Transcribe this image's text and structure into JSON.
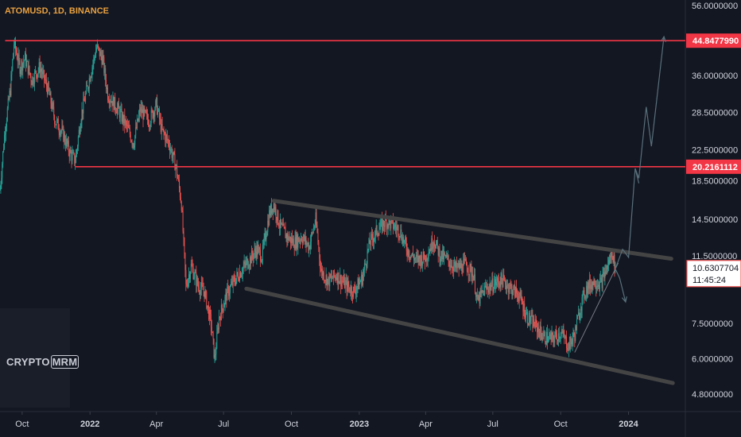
{
  "chart_data": {
    "type": "candlestick",
    "title": "ATOMUSD, 1D, BINANCE",
    "y_scale": "log",
    "ylim": [
      4.3,
      58
    ],
    "x_range": [
      "2021-09-01",
      "2024-03-18"
    ],
    "y_ticks": [
      "56.0000000",
      "36.0000000",
      "28.5000000",
      "22.5000000",
      "18.5000000",
      "14.5000000",
      "11.5000000",
      "7.5000000",
      "6.0000000",
      "4.8000000"
    ],
    "x_ticks": [
      {
        "label": "Oct",
        "date": "2021-10-01",
        "bold": false
      },
      {
        "label": "2022",
        "date": "2022-01-01",
        "bold": true
      },
      {
        "label": "Apr",
        "date": "2022-04-01",
        "bold": false
      },
      {
        "label": "Jul",
        "date": "2022-07-01",
        "bold": false
      },
      {
        "label": "Oct",
        "date": "2022-10-01",
        "bold": false
      },
      {
        "label": "2023",
        "date": "2023-01-01",
        "bold": true
      },
      {
        "label": "Apr",
        "date": "2023-04-01",
        "bold": false
      },
      {
        "label": "Jul",
        "date": "2023-07-01",
        "bold": false
      },
      {
        "label": "Oct",
        "date": "2023-10-01",
        "bold": false
      },
      {
        "label": "2024",
        "date": "2024-01-01",
        "bold": true
      }
    ],
    "price_path": [
      [
        "2021-09-01",
        17.5
      ],
      [
        "2021-09-08",
        26
      ],
      [
        "2021-09-15",
        33
      ],
      [
        "2021-09-20",
        44
      ],
      [
        "2021-09-28",
        38
      ],
      [
        "2021-10-05",
        40
      ],
      [
        "2021-10-14",
        35
      ],
      [
        "2021-10-25",
        38
      ],
      [
        "2021-11-05",
        33
      ],
      [
        "2021-11-15",
        27
      ],
      [
        "2021-11-25",
        25
      ],
      [
        "2021-12-05",
        22
      ],
      [
        "2021-12-12",
        21
      ],
      [
        "2021-12-20",
        28
      ],
      [
        "2022-01-01",
        36
      ],
      [
        "2022-01-10",
        43
      ],
      [
        "2022-01-18",
        40
      ],
      [
        "2022-01-25",
        32
      ],
      [
        "2022-02-08",
        29
      ],
      [
        "2022-02-20",
        26
      ],
      [
        "2022-03-01",
        23.5
      ],
      [
        "2022-03-10",
        29
      ],
      [
        "2022-03-22",
        27
      ],
      [
        "2022-04-01",
        30
      ],
      [
        "2022-04-08",
        25.5
      ],
      [
        "2022-04-18",
        23.5
      ],
      [
        "2022-04-28",
        20
      ],
      [
        "2022-05-05",
        16
      ],
      [
        "2022-05-11",
        9.5
      ],
      [
        "2022-05-18",
        10.8
      ],
      [
        "2022-05-28",
        9.5
      ],
      [
        "2022-06-05",
        9.2
      ],
      [
        "2022-06-14",
        7.5
      ],
      [
        "2022-06-19",
        6.0
      ],
      [
        "2022-06-25",
        7.8
      ],
      [
        "2022-07-05",
        9.0
      ],
      [
        "2022-07-15",
        9.8
      ],
      [
        "2022-07-25",
        10.5
      ],
      [
        "2022-08-05",
        11.2
      ],
      [
        "2022-08-15",
        12.0
      ],
      [
        "2022-08-22",
        11.5
      ],
      [
        "2022-09-01",
        15.0
      ],
      [
        "2022-09-07",
        16.0
      ],
      [
        "2022-09-15",
        14.0
      ],
      [
        "2022-09-25",
        13.0
      ],
      [
        "2022-10-05",
        12.5
      ],
      [
        "2022-10-15",
        13.0
      ],
      [
        "2022-10-25",
        12.2
      ],
      [
        "2022-11-03",
        14.5
      ],
      [
        "2022-11-10",
        10.5
      ],
      [
        "2022-11-20",
        9.8
      ],
      [
        "2022-12-01",
        10.2
      ],
      [
        "2022-12-15",
        9.5
      ],
      [
        "2022-12-25",
        9.2
      ],
      [
        "2023-01-05",
        10.0
      ],
      [
        "2023-01-15",
        12.5
      ],
      [
        "2023-01-25",
        13.5
      ],
      [
        "2023-02-05",
        14.3
      ],
      [
        "2023-02-15",
        14.0
      ],
      [
        "2023-02-25",
        13.5
      ],
      [
        "2023-03-05",
        12.2
      ],
      [
        "2023-03-12",
        11.6
      ],
      [
        "2023-03-20",
        11.2
      ],
      [
        "2023-04-01",
        11.4
      ],
      [
        "2023-04-12",
        12.8
      ],
      [
        "2023-04-20",
        11.6
      ],
      [
        "2023-05-01",
        11.2
      ],
      [
        "2023-05-12",
        10.6
      ],
      [
        "2023-05-25",
        10.9
      ],
      [
        "2023-06-05",
        10.2
      ],
      [
        "2023-06-10",
        8.6
      ],
      [
        "2023-06-20",
        9.3
      ],
      [
        "2023-07-01",
        9.6
      ],
      [
        "2023-07-13",
        9.9
      ],
      [
        "2023-07-25",
        9.4
      ],
      [
        "2023-08-05",
        9.0
      ],
      [
        "2023-08-17",
        7.8
      ],
      [
        "2023-08-28",
        7.4
      ],
      [
        "2023-09-08",
        6.9
      ],
      [
        "2023-09-20",
        6.8
      ],
      [
        "2023-10-01",
        7.1
      ],
      [
        "2023-10-12",
        6.5
      ],
      [
        "2023-10-20",
        7.0
      ],
      [
        "2023-10-28",
        8.4
      ],
      [
        "2023-11-05",
        9.4
      ],
      [
        "2023-11-15",
        9.8
      ],
      [
        "2023-11-25",
        9.7
      ],
      [
        "2023-12-05",
        11.0
      ],
      [
        "2023-12-10",
        11.8
      ],
      [
        "2023-12-14",
        10.6
      ]
    ],
    "resistance_levels": [
      {
        "price": 44.847799,
        "label": "44.8477990",
        "from": "2021-09-08"
      },
      {
        "price": 20.2161112,
        "label": "20.2161112",
        "from": "2021-12-12"
      }
    ],
    "channel": {
      "upper": [
        [
          "2022-09-07",
          16.3
        ],
        [
          "2024-02-28",
          11.3
        ]
      ],
      "lower": [
        [
          "2022-08-01",
          9.35
        ],
        [
          "2024-03-01",
          5.15
        ]
      ]
    },
    "support_trendline": [
      [
        "2023-10-20",
        6.25
      ],
      [
        "2023-12-18",
        11.0
      ]
    ],
    "projection_up": [
      [
        "2023-12-14",
        10.6
      ],
      [
        "2023-12-24",
        12.0
      ],
      [
        "2024-01-01",
        11.4
      ],
      [
        "2024-01-10",
        20.0
      ],
      [
        "2024-01-15",
        18.8
      ],
      [
        "2024-01-25",
        29.5
      ],
      [
        "2024-02-01",
        23.0
      ],
      [
        "2024-02-18",
        46.0
      ]
    ],
    "projection_down": [
      [
        "2023-12-14",
        10.6
      ],
      [
        "2023-12-20",
        10.0
      ],
      [
        "2023-12-28",
        8.6
      ]
    ],
    "current_price": {
      "label": "10.6307704",
      "countdown": "11:45:24",
      "value": 10.6307704
    },
    "colors": {
      "background": "#131722",
      "bull": "#26a69a",
      "bear": "#ef5350",
      "level_line": "#f23645",
      "channel": "#444444",
      "projection": "#58707b",
      "title": "#e8a040"
    }
  },
  "watermark": {
    "prefix": "CRYPTO",
    "boxed": "MRM"
  }
}
